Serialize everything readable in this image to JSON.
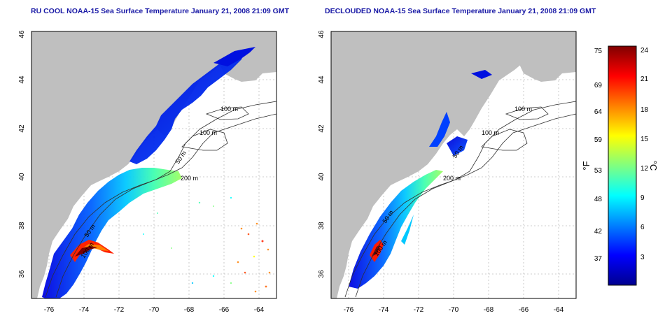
{
  "panels": [
    {
      "title": "RU COOL NOAA-15 Sea Surface Temperature January 21, 2008 21:09 GMT",
      "contours": [
        "100 m",
        "100 m",
        "50 m",
        "200 m",
        "50 m",
        "100 m"
      ]
    },
    {
      "title": "DECLOUDED NOAA-15 Sea Surface Temperature January 21, 2008 21:09 GMT",
      "contours": [
        "100 m",
        "100 m",
        "50 m",
        "200 m",
        "50 m",
        "100 m"
      ]
    }
  ],
  "axes": {
    "x_ticks": [
      "-76",
      "-74",
      "-72",
      "-70",
      "-68",
      "-66",
      "-64"
    ],
    "y_ticks": [
      "36",
      "38",
      "40",
      "42",
      "44",
      "46"
    ],
    "x_range": [
      -77,
      -63
    ],
    "y_range": [
      35,
      46
    ]
  },
  "colorbar": {
    "fahrenheit_label": "°F",
    "celsius_label": "°C",
    "fahrenheit_ticks": [
      "75",
      "69",
      "64",
      "59",
      "53",
      "48",
      "42",
      "37"
    ],
    "celsius_ticks": [
      "24",
      "21",
      "18",
      "15",
      "12",
      "9",
      "6",
      "3"
    ],
    "range_c": [
      0,
      24.5
    ],
    "colors": [
      "#00008f",
      "#0000ff",
      "#0080ff",
      "#00ffff",
      "#80ff80",
      "#ffff00",
      "#ff8000",
      "#ff0000",
      "#800000"
    ]
  }
}
